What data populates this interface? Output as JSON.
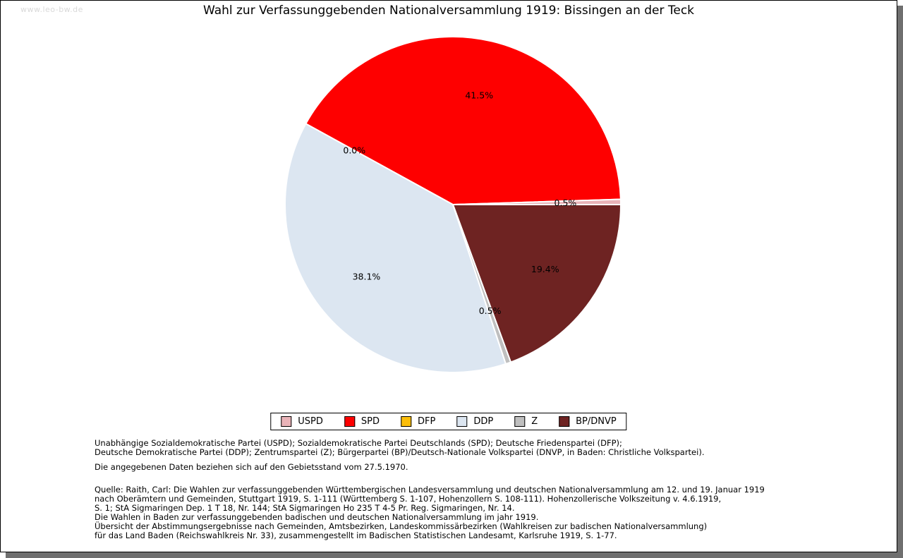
{
  "page": {
    "watermark": "www.leo-bw.de",
    "title": "Wahl zur Verfassunggebenden Nationalversammlung 1919: Bissingen an der Teck"
  },
  "chart_data": {
    "type": "pie",
    "title": "Wahl zur Verfassunggebenden Nationalversammlung 1919: Bissingen an der Teck",
    "start_angle_deg": 0,
    "direction": "counterclockwise",
    "value_suffix": "%",
    "legend_position": "bottom",
    "slice_border_color": "#ffffff",
    "slices": [
      {
        "label": "USPD",
        "value": 0.5,
        "color": "#e9b3b8"
      },
      {
        "label": "SPD",
        "value": 41.5,
        "color": "#fe0000"
      },
      {
        "label": "DFP",
        "value": 0.0,
        "color": "#fcbe0a"
      },
      {
        "label": "DDP",
        "value": 38.1,
        "color": "#dce6f1"
      },
      {
        "label": "Z",
        "value": 0.5,
        "color": "#bfbfbf"
      },
      {
        "label": "BP/DNVP",
        "value": 19.4,
        "color": "#6e2322"
      }
    ]
  },
  "footnotes": {
    "party_names": [
      "Unabhängige Sozialdemokratische Partei (USPD); Sozialdemokratische Partei Deutschlands (SPD); Deutsche Friedenspartei (DFP);",
      "Deutsche Demokratische Partei (DDP); Zentrumspartei (Z); Bürgerpartei (BP)/Deutsch-Nationale Volkspartei (DNVP, in Baden: Christliche Volkspartei)."
    ],
    "data_note": [
      "Die angegebenen Daten beziehen sich auf den Gebietsstand vom 27.5.1970."
    ],
    "source": [
      "Quelle: Raith, Carl: Die Wahlen zur verfassunggebenden Württembergischen Landesversammlung und deutschen Nationalversammlung am 12. und 19. Januar 1919",
      "nach Oberämtern und Gemeinden, Stuttgart 1919, S. 1-111 (Württemberg S. 1-107, Hohenzollern S. 108-111). Hohenzollerische Volkszeitung v. 4.6.1919,",
      "S. 1; StA Sigmaringen Dep. 1 T 18, Nr. 144; StA Sigmaringen Ho 235 T 4-5 Pr. Reg. Sigmaringen, Nr. 14.",
      "Die Wahlen in Baden zur verfassunggebenden badischen und deutschen Nationalversammlung im jahr 1919.",
      "Übersicht der Abstimmungsergebnisse nach Gemeinden, Amtsbezirken, Landeskommissärbezirken (Wahlkreisen zur badischen Nationalversammlung)",
      "für das Land Baden (Reichswahlkreis Nr. 33), zusammengestellt im Badischen Statistischen Landesamt, Karlsruhe 1919, S. 1-77."
    ]
  }
}
